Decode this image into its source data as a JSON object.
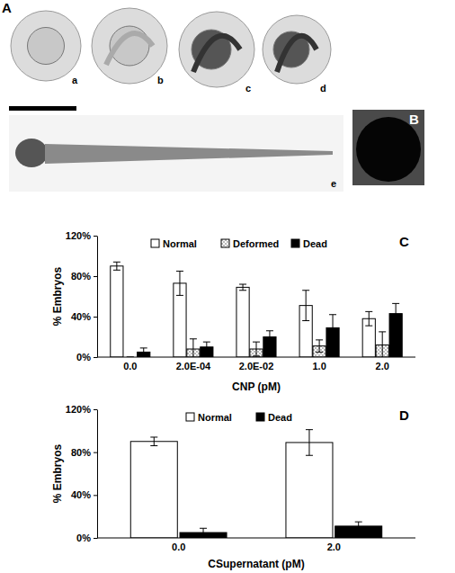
{
  "image_labels": [
    "A",
    "a",
    "b",
    "c",
    "d",
    "e",
    "B"
  ],
  "chart_data": [
    {
      "type": "bar",
      "annotations": [
        "C"
      ],
      "xlabel": "CNP (pM)",
      "ylabel": "% Embryos",
      "categories": [
        "0.0",
        "2.0E-04",
        "2.0E-02",
        "1.0",
        "2.0"
      ],
      "series": [
        {
          "name": "Normal",
          "color": "#ffffff",
          "values": [
            90,
            73,
            69,
            51,
            38
          ],
          "errors": [
            4,
            12,
            3,
            15,
            7
          ]
        },
        {
          "name": "Deformed",
          "color": "#9a9a9a",
          "marker": "dots",
          "values": [
            0,
            8,
            8,
            11,
            12
          ],
          "errors": [
            0,
            10,
            7,
            6,
            13
          ]
        },
        {
          "name": "Dead",
          "color": "#000000",
          "values": [
            5,
            10,
            20,
            29,
            43
          ],
          "errors": [
            4,
            5,
            6,
            13,
            10
          ]
        }
      ],
      "ylim": [
        0,
        120
      ],
      "yticks": [
        {
          "value": 0,
          "label": "0%"
        },
        {
          "value": 40,
          "label": "40%"
        },
        {
          "value": 80,
          "label": "80%"
        },
        {
          "value": 120,
          "label": "120%"
        }
      ],
      "legend": "top",
      "grid": false
    },
    {
      "type": "bar",
      "annotations": [
        "D"
      ],
      "xlabel": "CSupernatant (pM)",
      "ylabel": "% Embryos",
      "categories": [
        "0.0",
        "2.0"
      ],
      "series": [
        {
          "name": "Normal",
          "color": "#ffffff",
          "values": [
            90,
            89
          ],
          "errors": [
            4,
            12
          ]
        },
        {
          "name": "Dead",
          "color": "#000000",
          "values": [
            5,
            11
          ],
          "errors": [
            4,
            4
          ]
        }
      ],
      "ylim": [
        0,
        120
      ],
      "yticks": [
        {
          "value": 0,
          "label": "0%"
        },
        {
          "value": 40,
          "label": "40%"
        },
        {
          "value": 80,
          "label": "80%"
        },
        {
          "value": 120,
          "label": "120%"
        }
      ],
      "legend": "top",
      "grid": false
    }
  ]
}
